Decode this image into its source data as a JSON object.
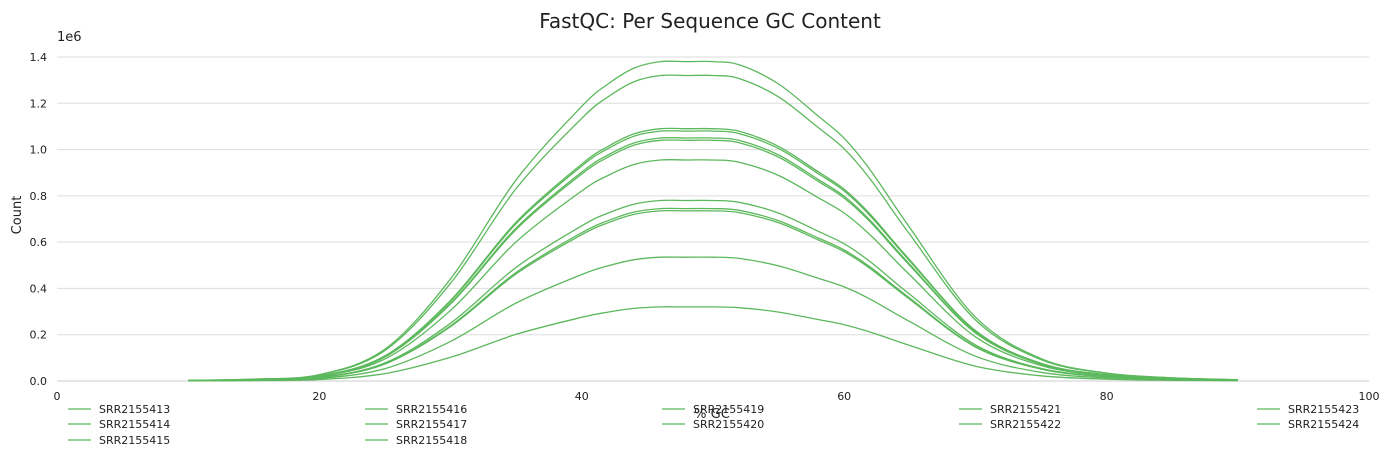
{
  "chart_data": {
    "type": "line",
    "title": "FastQC: Per Sequence GC Content",
    "xlabel": "% GC",
    "ylabel": "Count",
    "y_scale_note": "1e6",
    "xlim": [
      0,
      100
    ],
    "ylim": [
      0,
      1400000
    ],
    "x_ticks": [
      0,
      20,
      40,
      60,
      80,
      100
    ],
    "y_ticks": [
      0,
      200000,
      400000,
      600000,
      800000,
      1000000,
      1200000,
      1400000
    ],
    "y_tick_labels": [
      "0.0",
      "0.2",
      "0.4",
      "0.6",
      "0.8",
      "1.0",
      "1.2",
      "1.4"
    ],
    "grid": "horizontal",
    "legend_position": "bottom",
    "series_color": "#5cb85c",
    "x": [
      10,
      15,
      20,
      25,
      30,
      35,
      40,
      42,
      44,
      46,
      48,
      50,
      52,
      55,
      58,
      60,
      62,
      65,
      70,
      75,
      80,
      85,
      90
    ],
    "series": [
      {
        "name": "SRR2155413",
        "peak": 1380000
      },
      {
        "name": "SRR2155414",
        "peak": 1320000
      },
      {
        "name": "SRR2155415",
        "peak": 1090000
      },
      {
        "name": "SRR2155416",
        "peak": 1080000
      },
      {
        "name": "SRR2155417",
        "peak": 1050000
      },
      {
        "name": "SRR2155418",
        "peak": 1040000
      },
      {
        "name": "SRR2155419",
        "peak": 955000
      },
      {
        "name": "SRR2155420",
        "peak": 780000
      },
      {
        "name": "SRR2155421",
        "peak": 745000
      },
      {
        "name": "SRR2155422",
        "peak": 735000
      },
      {
        "name": "SRR2155423",
        "peak": 535000
      },
      {
        "name": "SRR2155424",
        "peak": 320000
      }
    ],
    "profile": [
      0.002,
      0.006,
      0.02,
      0.1,
      0.32,
      0.63,
      0.86,
      0.93,
      0.98,
      1.0,
      1.0,
      1.0,
      0.99,
      0.93,
      0.83,
      0.76,
      0.66,
      0.48,
      0.2,
      0.07,
      0.025,
      0.01,
      0.004
    ]
  }
}
